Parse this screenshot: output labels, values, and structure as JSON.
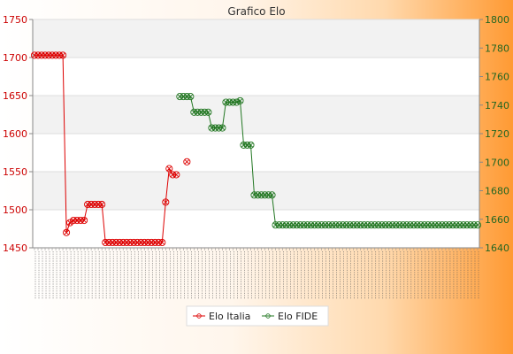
{
  "chart_data": {
    "type": "line",
    "title": "Grafico Elo",
    "xlabel": "",
    "ylabel": "",
    "y_left": {
      "min": 1450,
      "max": 1750,
      "ticks": [
        1450,
        1500,
        1550,
        1600,
        1650,
        1700,
        1750
      ]
    },
    "y_right": {
      "min": 1640,
      "max": 1800,
      "ticks": [
        1640,
        1660,
        1680,
        1700,
        1720,
        1740,
        1760,
        1780,
        1800
      ]
    },
    "grid": true,
    "legend_position": "bottom",
    "x_count": 91,
    "x_tick_labels_note": "dense rotated date labels (illegible)",
    "series": [
      {
        "name": "Elo Italia",
        "color": "#dd0000",
        "axis": "left",
        "x": [
          0,
          1,
          2,
          3,
          4,
          5,
          6,
          7,
          8,
          9,
          10,
          11,
          12,
          13,
          14,
          15,
          16,
          17,
          18,
          19,
          20,
          21,
          22,
          23,
          24,
          25,
          26,
          27,
          28,
          29,
          30,
          31,
          32,
          33,
          34,
          35,
          36,
          37,
          38,
          39,
          40
        ],
        "values": [
          1703,
          1703,
          1703,
          1703,
          1703,
          1703,
          1703,
          1703,
          1703,
          1470,
          1483,
          1486,
          1486,
          1486,
          1486,
          1507,
          1507,
          1507,
          1507,
          1507,
          1457,
          1457,
          1457,
          1457,
          1457,
          1457,
          1457,
          1457,
          1457,
          1457,
          1457,
          1457,
          1457,
          1457,
          1457,
          1457,
          1457,
          1510,
          1554,
          1546,
          1546
        ]
      },
      {
        "name": "Elo FIDE",
        "color": "#227722",
        "axis": "right",
        "x": [
          41,
          42,
          43,
          44,
          45,
          46,
          47,
          48,
          49,
          50,
          51,
          52,
          53,
          54,
          55,
          56,
          57,
          58,
          59,
          60,
          61,
          62,
          63,
          64,
          65,
          66,
          67,
          68,
          69,
          70,
          71,
          72,
          73,
          74,
          75,
          76,
          77,
          78,
          79,
          80,
          81,
          82,
          83,
          84,
          85,
          86,
          87,
          88,
          89,
          90,
          91,
          92,
          93,
          94,
          95,
          96,
          97,
          98,
          99,
          100,
          101,
          102,
          103,
          104,
          105,
          106,
          107,
          108,
          109,
          110,
          111,
          112,
          113,
          114,
          115,
          116,
          117,
          118,
          119,
          120,
          121,
          122,
          123,
          124,
          125
        ],
        "values": [
          1746,
          1746,
          1746,
          1746,
          1735,
          1735,
          1735,
          1735,
          1735,
          1724,
          1724,
          1724,
          1724,
          1742,
          1742,
          1742,
          1742,
          1743,
          1712,
          1712,
          1712,
          1677,
          1677,
          1677,
          1677,
          1677,
          1677,
          1656,
          1656,
          1656,
          1656,
          1656,
          1656,
          1656,
          1656,
          1656,
          1656,
          1656,
          1656,
          1656,
          1656,
          1656,
          1656,
          1656,
          1656,
          1656,
          1656,
          1656,
          1656,
          1656,
          1656,
          1656,
          1656,
          1656,
          1656,
          1656,
          1656,
          1656,
          1656,
          1656,
          1656,
          1656,
          1656,
          1656,
          1656,
          1656,
          1656,
          1656,
          1656,
          1656,
          1656,
          1656,
          1656,
          1656,
          1656,
          1656,
          1656,
          1656,
          1656,
          1656,
          1656,
          1656,
          1656,
          1656,
          1656
        ]
      }
    ],
    "extra_points": [
      {
        "series": "Elo Italia",
        "x": 43,
        "value": 1563
      }
    ]
  }
}
